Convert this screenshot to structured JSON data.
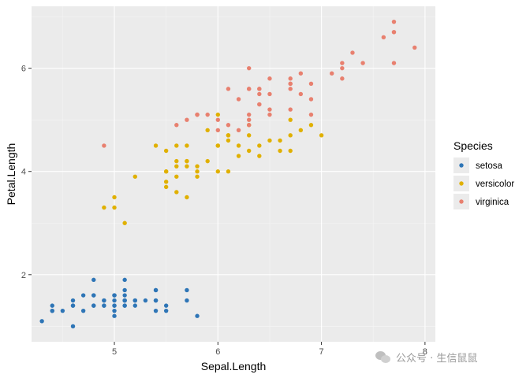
{
  "chart_data": {
    "type": "scatter",
    "title": "",
    "xlabel": "Sepal.Length",
    "ylabel": "Petal.Length",
    "xlim": [
      4.2,
      8.1
    ],
    "ylim": [
      0.7,
      7.2
    ],
    "x_ticks": [
      5,
      6,
      7,
      8
    ],
    "y_ticks": [
      2,
      4,
      6
    ],
    "x_tick_labels": [
      "5",
      "6",
      "7",
      "8"
    ],
    "y_tick_labels": [
      "2",
      "4",
      "6"
    ],
    "grid": true,
    "legend_position": "right",
    "legend_title": "Species",
    "series": [
      {
        "name": "setosa",
        "color": "#2E75B6",
        "points": [
          [
            5.1,
            1.4
          ],
          [
            4.9,
            1.4
          ],
          [
            4.7,
            1.3
          ],
          [
            4.6,
            1.5
          ],
          [
            5.0,
            1.4
          ],
          [
            5.4,
            1.7
          ],
          [
            4.6,
            1.4
          ],
          [
            5.0,
            1.5
          ],
          [
            4.4,
            1.4
          ],
          [
            4.9,
            1.5
          ],
          [
            5.4,
            1.5
          ],
          [
            4.8,
            1.6
          ],
          [
            4.8,
            1.4
          ],
          [
            4.3,
            1.1
          ],
          [
            5.8,
            1.2
          ],
          [
            5.7,
            1.5
          ],
          [
            5.4,
            1.3
          ],
          [
            5.1,
            1.4
          ],
          [
            5.7,
            1.7
          ],
          [
            5.1,
            1.5
          ],
          [
            5.4,
            1.7
          ],
          [
            5.1,
            1.5
          ],
          [
            4.6,
            1.0
          ],
          [
            5.1,
            1.7
          ],
          [
            4.8,
            1.9
          ],
          [
            5.0,
            1.6
          ],
          [
            5.0,
            1.6
          ],
          [
            5.2,
            1.5
          ],
          [
            5.2,
            1.4
          ],
          [
            4.7,
            1.6
          ],
          [
            4.8,
            1.6
          ],
          [
            5.4,
            1.5
          ],
          [
            5.2,
            1.5
          ],
          [
            5.5,
            1.4
          ],
          [
            4.9,
            1.5
          ],
          [
            5.0,
            1.2
          ],
          [
            5.5,
            1.3
          ],
          [
            4.9,
            1.4
          ],
          [
            4.4,
            1.3
          ],
          [
            5.1,
            1.5
          ],
          [
            5.0,
            1.3
          ],
          [
            4.5,
            1.3
          ],
          [
            4.4,
            1.3
          ],
          [
            5.0,
            1.6
          ],
          [
            5.1,
            1.9
          ],
          [
            4.8,
            1.4
          ],
          [
            5.1,
            1.6
          ],
          [
            4.6,
            1.4
          ],
          [
            5.3,
            1.5
          ],
          [
            5.0,
            1.4
          ]
        ]
      },
      {
        "name": "versicolor",
        "color": "#E0B000",
        "points": [
          [
            7.0,
            4.7
          ],
          [
            6.4,
            4.5
          ],
          [
            6.9,
            4.9
          ],
          [
            5.5,
            4.0
          ],
          [
            6.5,
            4.6
          ],
          [
            5.7,
            4.5
          ],
          [
            6.3,
            4.7
          ],
          [
            4.9,
            3.3
          ],
          [
            6.6,
            4.6
          ],
          [
            5.2,
            3.9
          ],
          [
            5.0,
            3.5
          ],
          [
            5.9,
            4.2
          ],
          [
            6.0,
            4.0
          ],
          [
            6.1,
            4.7
          ],
          [
            5.6,
            3.6
          ],
          [
            6.7,
            4.4
          ],
          [
            5.6,
            4.5
          ],
          [
            5.8,
            4.1
          ],
          [
            6.2,
            4.5
          ],
          [
            5.6,
            3.9
          ],
          [
            5.9,
            4.8
          ],
          [
            6.1,
            4.0
          ],
          [
            6.3,
            4.9
          ],
          [
            6.1,
            4.7
          ],
          [
            6.4,
            4.3
          ],
          [
            6.6,
            4.4
          ],
          [
            6.8,
            4.8
          ],
          [
            6.7,
            5.0
          ],
          [
            6.0,
            4.5
          ],
          [
            5.7,
            3.5
          ],
          [
            5.5,
            3.8
          ],
          [
            5.5,
            3.7
          ],
          [
            5.8,
            3.9
          ],
          [
            6.0,
            5.1
          ],
          [
            5.4,
            4.5
          ],
          [
            6.0,
            4.5
          ],
          [
            6.7,
            4.7
          ],
          [
            6.3,
            4.4
          ],
          [
            5.6,
            4.1
          ],
          [
            5.5,
            4.0
          ],
          [
            5.5,
            4.4
          ],
          [
            6.1,
            4.6
          ],
          [
            5.8,
            4.0
          ],
          [
            5.0,
            3.3
          ],
          [
            5.6,
            4.2
          ],
          [
            5.7,
            4.2
          ],
          [
            5.7,
            4.2
          ],
          [
            6.2,
            4.3
          ],
          [
            5.1,
            3.0
          ],
          [
            5.7,
            4.1
          ]
        ]
      },
      {
        "name": "virginica",
        "color": "#E8806F",
        "points": [
          [
            6.3,
            6.0
          ],
          [
            5.8,
            5.1
          ],
          [
            7.1,
            5.9
          ],
          [
            6.3,
            5.6
          ],
          [
            6.5,
            5.8
          ],
          [
            7.6,
            6.6
          ],
          [
            4.9,
            4.5
          ],
          [
            7.3,
            6.3
          ],
          [
            6.7,
            5.8
          ],
          [
            7.2,
            6.1
          ],
          [
            6.5,
            5.1
          ],
          [
            6.4,
            5.3
          ],
          [
            6.8,
            5.5
          ],
          [
            5.7,
            5.0
          ],
          [
            5.8,
            5.1
          ],
          [
            6.4,
            5.3
          ],
          [
            6.5,
            5.5
          ],
          [
            7.7,
            6.7
          ],
          [
            7.7,
            6.9
          ],
          [
            6.0,
            5.0
          ],
          [
            6.9,
            5.7
          ],
          [
            5.6,
            4.9
          ],
          [
            7.7,
            6.7
          ],
          [
            6.3,
            4.9
          ],
          [
            6.7,
            5.7
          ],
          [
            7.2,
            6.0
          ],
          [
            6.2,
            4.8
          ],
          [
            6.1,
            4.9
          ],
          [
            6.4,
            5.6
          ],
          [
            7.2,
            5.8
          ],
          [
            7.4,
            6.1
          ],
          [
            7.9,
            6.4
          ],
          [
            6.4,
            5.6
          ],
          [
            6.3,
            5.1
          ],
          [
            6.1,
            5.6
          ],
          [
            7.7,
            6.1
          ],
          [
            6.3,
            5.6
          ],
          [
            6.4,
            5.5
          ],
          [
            6.0,
            4.8
          ],
          [
            6.9,
            5.4
          ],
          [
            6.7,
            5.6
          ],
          [
            6.9,
            5.1
          ],
          [
            5.8,
            5.1
          ],
          [
            6.8,
            5.9
          ],
          [
            6.7,
            5.7
          ],
          [
            6.7,
            5.2
          ],
          [
            6.3,
            5.0
          ],
          [
            6.5,
            5.2
          ],
          [
            6.2,
            5.4
          ],
          [
            5.9,
            5.1
          ]
        ]
      }
    ]
  },
  "watermark": {
    "text": "公众号 · 生信鼠鼠"
  }
}
